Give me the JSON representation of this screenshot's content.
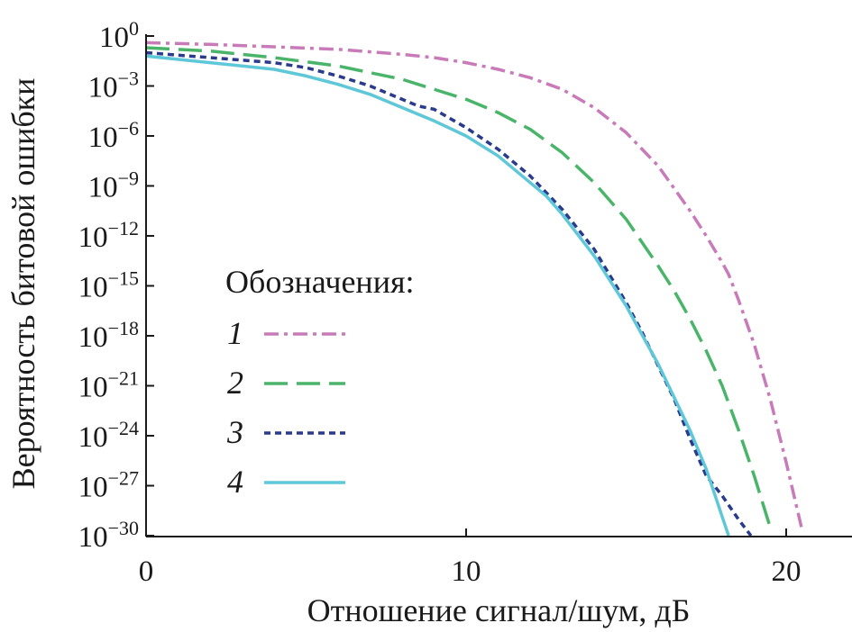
{
  "chart_data": {
    "type": "line",
    "title": "",
    "xlabel": "Отношение сигнал/шум, дБ",
    "ylabel": "Вероятность битовой ошибки",
    "xlim": [
      0,
      22
    ],
    "ylim_log10": [
      -30,
      0
    ],
    "y_scale": "log",
    "grid": false,
    "x_ticks": [
      {
        "value": 0,
        "label": "0"
      },
      {
        "value": 10,
        "label": "10"
      },
      {
        "value": 20,
        "label": "20"
      }
    ],
    "y_ticks": [
      {
        "exp": 0,
        "base": "10",
        "sup": "0"
      },
      {
        "exp": -3,
        "base": "10",
        "sup": "−3"
      },
      {
        "exp": -6,
        "base": "10",
        "sup": "−6"
      },
      {
        "exp": -9,
        "base": "10",
        "sup": "−9"
      },
      {
        "exp": -12,
        "base": "10",
        "sup": "−12"
      },
      {
        "exp": -15,
        "base": "10",
        "sup": "−15"
      },
      {
        "exp": -18,
        "base": "10",
        "sup": "−18"
      },
      {
        "exp": -21,
        "base": "10",
        "sup": "−21"
      },
      {
        "exp": -24,
        "base": "10",
        "sup": "−24"
      },
      {
        "exp": -27,
        "base": "10",
        "sup": "−27"
      },
      {
        "exp": -30,
        "base": "10",
        "sup": "−30"
      }
    ],
    "legend": {
      "title": "Обозначения:",
      "placement": "center-left"
    },
    "series": [
      {
        "name": "1",
        "color": "#c87bb8",
        "dash": "dash-dot",
        "x": [
          0,
          2,
          4,
          6,
          8,
          9,
          10,
          11,
          12,
          13,
          14,
          15,
          16,
          17,
          17.5,
          18,
          18.2,
          18.5,
          19,
          19.5,
          20,
          20.5
        ],
        "log10_y": [
          -0.4,
          -0.5,
          -0.65,
          -0.8,
          -1.1,
          -1.3,
          -1.6,
          -2.0,
          -2.5,
          -3.2,
          -4.3,
          -5.8,
          -7.8,
          -10.5,
          -12.0,
          -13.6,
          -14.3,
          -15.8,
          -18.5,
          -21.8,
          -25.6,
          -29.7
        ]
      },
      {
        "name": "2",
        "color": "#4ab56a",
        "dash": "long-dash",
        "x": [
          0,
          2,
          4,
          6,
          8,
          10,
          11,
          12,
          13,
          14,
          15,
          16,
          16.5,
          17,
          17.5,
          18,
          18.5,
          19,
          19.5
        ],
        "log10_y": [
          -0.7,
          -0.9,
          -1.3,
          -1.8,
          -2.6,
          -3.8,
          -4.6,
          -5.6,
          -7.0,
          -8.8,
          -11.0,
          -13.8,
          -15.3,
          -17.0,
          -18.9,
          -21.0,
          -23.6,
          -26.4,
          -29.5
        ]
      },
      {
        "name": "3",
        "color": "#2a3a8c",
        "dash": "short-dash",
        "x": [
          0,
          2,
          4,
          5,
          6,
          7,
          8,
          8.5,
          9,
          10,
          11,
          12,
          13,
          14,
          14.5,
          15,
          15.5,
          16,
          16.5,
          17,
          17.5,
          18,
          18.5,
          18.9
        ],
        "log10_y": [
          -1.0,
          -1.3,
          -1.6,
          -1.9,
          -2.4,
          -3.0,
          -3.8,
          -4.2,
          -4.4,
          -5.5,
          -6.8,
          -8.4,
          -10.4,
          -12.8,
          -14.4,
          -16.0,
          -17.8,
          -19.8,
          -21.8,
          -24.2,
          -26.4,
          -27.6,
          -29.0,
          -30.0
        ]
      },
      {
        "name": "4",
        "color": "#5ec7d8",
        "dash": "solid",
        "x": [
          0,
          2,
          4,
          5,
          6,
          7,
          8,
          9,
          10,
          11,
          12,
          12.5,
          13,
          14,
          15,
          16,
          17,
          17.5,
          18.2
        ],
        "log10_y": [
          -1.2,
          -1.6,
          -2.0,
          -2.4,
          -2.9,
          -3.5,
          -4.3,
          -5.1,
          -6.0,
          -7.2,
          -8.8,
          -9.6,
          -10.7,
          -13.2,
          -16.2,
          -19.7,
          -23.7,
          -26.0,
          -30.0
        ]
      }
    ]
  }
}
